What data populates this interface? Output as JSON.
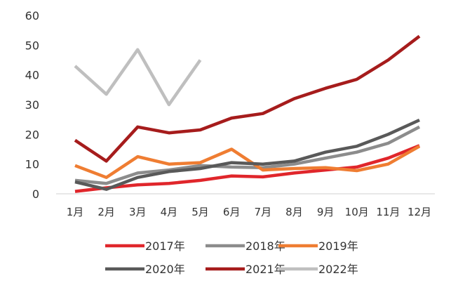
{
  "chart_data": {
    "type": "line",
    "categories": [
      "1月",
      "2月",
      "3月",
      "4月",
      "5月",
      "6月",
      "7月",
      "8月",
      "9月",
      "10月",
      "11月",
      "12月"
    ],
    "ylim": [
      0,
      60
    ],
    "y_ticks": [
      0,
      10,
      20,
      30,
      40,
      50,
      60
    ],
    "grid": false,
    "legend_position": "bottom",
    "series": [
      {
        "name": "2017年",
        "color": "#e0262b",
        "values": [
          0.8,
          2.0,
          3.0,
          3.5,
          4.5,
          6.0,
          5.7,
          7.0,
          8.0,
          9.0,
          12.0,
          16.2
        ]
      },
      {
        "name": "2018年",
        "color": "#8c8c8c",
        "values": [
          4.5,
          3.5,
          7.0,
          8.0,
          9.5,
          9.0,
          8.8,
          10.0,
          12.0,
          14.0,
          17.0,
          22.5
        ]
      },
      {
        "name": "2019年",
        "color": "#ef7d32",
        "values": [
          9.5,
          5.5,
          12.5,
          10.0,
          10.5,
          15.0,
          8.0,
          8.5,
          8.8,
          7.8,
          10.0,
          16.0
        ]
      },
      {
        "name": "2020年",
        "color": "#595959",
        "values": [
          4.0,
          1.5,
          5.5,
          7.5,
          8.5,
          10.5,
          10.0,
          11.0,
          14.0,
          16.0,
          20.0,
          24.8
        ]
      },
      {
        "name": "2021年",
        "color": "#a61c1c",
        "values": [
          18.0,
          11.0,
          22.5,
          20.5,
          21.5,
          25.5,
          27.0,
          32.0,
          35.5,
          38.5,
          45.0,
          53.0
        ]
      },
      {
        "name": "2022年",
        "color": "#bfbfbf",
        "values": [
          43.0,
          33.5,
          48.5,
          30.0,
          45.0,
          null,
          null,
          null,
          null,
          null,
          null,
          null
        ]
      }
    ]
  }
}
